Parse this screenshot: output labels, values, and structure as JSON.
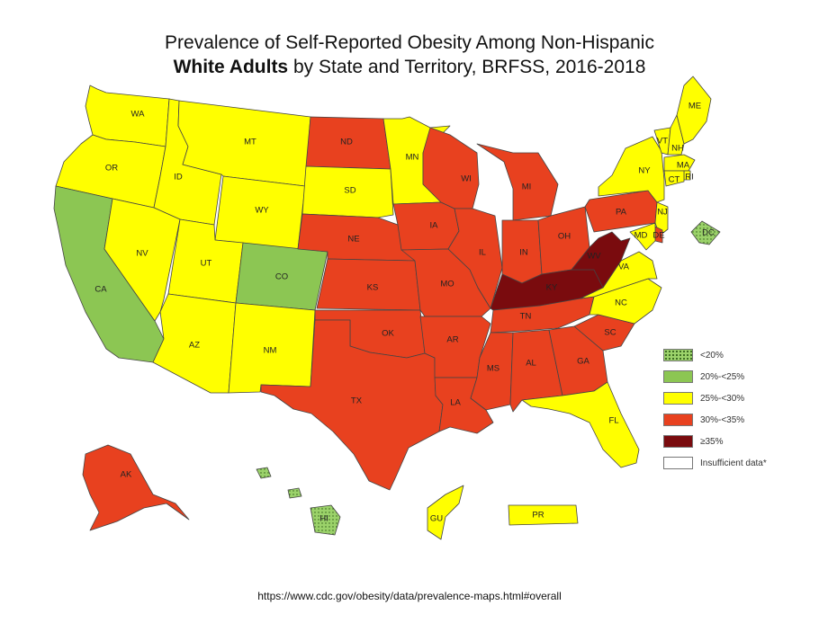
{
  "title": {
    "line1": "Prevalence of Self-Reported Obesity Among Non-Hispanic",
    "line2_bold": "White Adults",
    "line2_rest": " by State and Territory, BRFSS, 2016-2018"
  },
  "source_url": "https://www.cdc.gov/obesity/data/prevalence-maps.html#overall",
  "categories": {
    "lt20": {
      "label": "<20%",
      "color": "#9bd26a",
      "pattern": "dots"
    },
    "c20": {
      "label": "20%-<25%",
      "color": "#8cc653"
    },
    "c25": {
      "label": "25%-<30%",
      "color": "#ffff00"
    },
    "c30": {
      "label": "30%-<35%",
      "color": "#e8411f"
    },
    "c35": {
      "label": "≥35%",
      "color": "#7a0b0e"
    },
    "na": {
      "label": "Insufficient data*",
      "color": "#ffffff"
    }
  },
  "legend_order": [
    "lt20",
    "c20",
    "c25",
    "c30",
    "c35",
    "na"
  ],
  "states": [
    {
      "abbr": "WA",
      "cat": "c25"
    },
    {
      "abbr": "OR",
      "cat": "c25"
    },
    {
      "abbr": "CA",
      "cat": "c20"
    },
    {
      "abbr": "ID",
      "cat": "c25"
    },
    {
      "abbr": "NV",
      "cat": "c25"
    },
    {
      "abbr": "MT",
      "cat": "c25"
    },
    {
      "abbr": "WY",
      "cat": "c25"
    },
    {
      "abbr": "UT",
      "cat": "c25"
    },
    {
      "abbr": "AZ",
      "cat": "c25"
    },
    {
      "abbr": "CO",
      "cat": "c20"
    },
    {
      "abbr": "NM",
      "cat": "c25"
    },
    {
      "abbr": "ND",
      "cat": "c30"
    },
    {
      "abbr": "SD",
      "cat": "c25"
    },
    {
      "abbr": "NE",
      "cat": "c30"
    },
    {
      "abbr": "KS",
      "cat": "c30"
    },
    {
      "abbr": "OK",
      "cat": "c30"
    },
    {
      "abbr": "TX",
      "cat": "c30"
    },
    {
      "abbr": "MN",
      "cat": "c25"
    },
    {
      "abbr": "IA",
      "cat": "c30"
    },
    {
      "abbr": "MO",
      "cat": "c30"
    },
    {
      "abbr": "AR",
      "cat": "c30"
    },
    {
      "abbr": "LA",
      "cat": "c30"
    },
    {
      "abbr": "WI",
      "cat": "c30"
    },
    {
      "abbr": "IL",
      "cat": "c30"
    },
    {
      "abbr": "MI",
      "cat": "c30"
    },
    {
      "abbr": "IN",
      "cat": "c30"
    },
    {
      "abbr": "OH",
      "cat": "c30"
    },
    {
      "abbr": "KY",
      "cat": "c35"
    },
    {
      "abbr": "TN",
      "cat": "c30"
    },
    {
      "abbr": "MS",
      "cat": "c30"
    },
    {
      "abbr": "AL",
      "cat": "c30"
    },
    {
      "abbr": "GA",
      "cat": "c30"
    },
    {
      "abbr": "FL",
      "cat": "c25"
    },
    {
      "abbr": "SC",
      "cat": "c30"
    },
    {
      "abbr": "NC",
      "cat": "c25"
    },
    {
      "abbr": "VA",
      "cat": "c25"
    },
    {
      "abbr": "WV",
      "cat": "c35"
    },
    {
      "abbr": "PA",
      "cat": "c30"
    },
    {
      "abbr": "NY",
      "cat": "c25"
    },
    {
      "abbr": "VT",
      "cat": "c25"
    },
    {
      "abbr": "NH",
      "cat": "c25"
    },
    {
      "abbr": "ME",
      "cat": "c25"
    },
    {
      "abbr": "MA",
      "cat": "c25"
    },
    {
      "abbr": "RI",
      "cat": "c25"
    },
    {
      "abbr": "CT",
      "cat": "c25"
    },
    {
      "abbr": "NJ",
      "cat": "c25"
    },
    {
      "abbr": "DE",
      "cat": "c30"
    },
    {
      "abbr": "MD",
      "cat": "c25"
    },
    {
      "abbr": "DC",
      "cat": "lt20"
    },
    {
      "abbr": "AK",
      "cat": "c30"
    },
    {
      "abbr": "HI",
      "cat": "lt20"
    },
    {
      "abbr": "GU",
      "cat": "c25"
    },
    {
      "abbr": "PR",
      "cat": "c25"
    }
  ]
}
